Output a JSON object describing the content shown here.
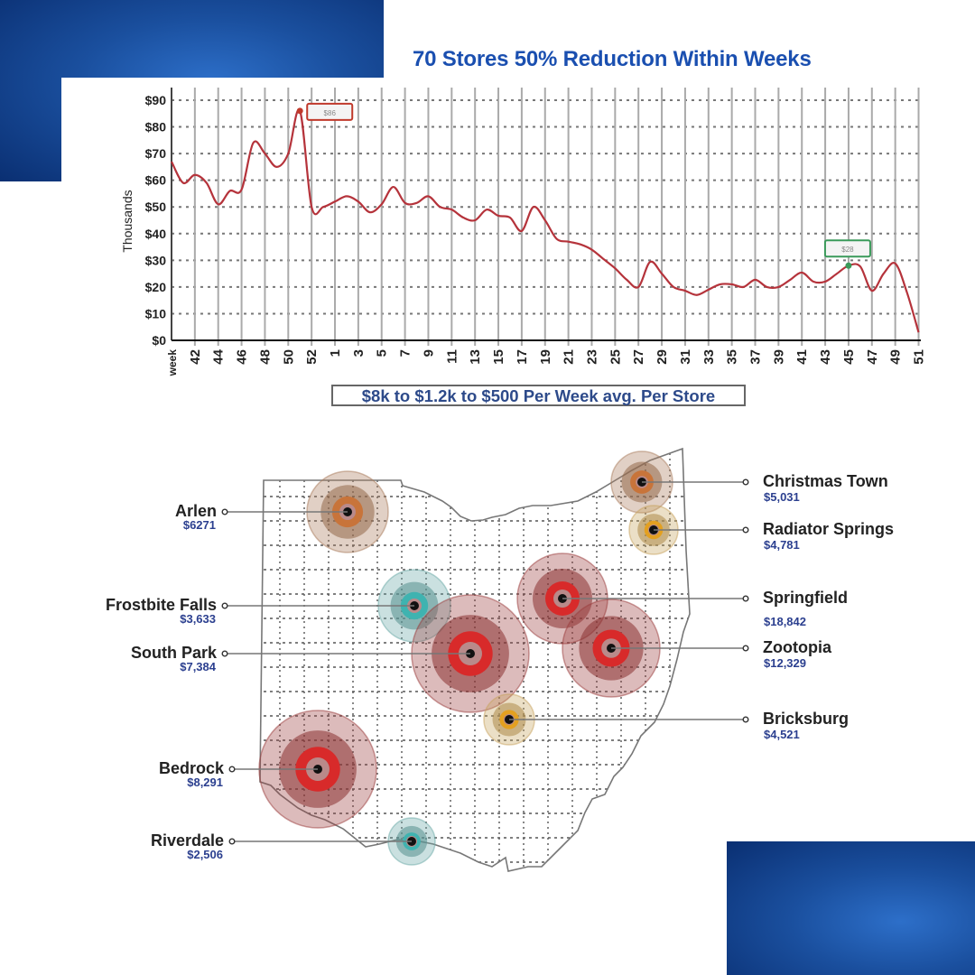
{
  "title": "70 Stores 50% Reduction Within Weeks",
  "subtitle": "$8k to $1.2k to $500 Per Week avg. Per Store",
  "colors": {
    "brand_blue": "#1a4fb0",
    "line": "#b5333b",
    "peak_callout": "#c0392b",
    "low_callout": "#3a9a5a"
  },
  "chart_data": {
    "type": "line",
    "title": "",
    "xlabel": "",
    "ylabel": "Thousands",
    "ylim": [
      0,
      90
    ],
    "y_ticks": [
      "$0",
      "$10",
      "$20",
      "$30",
      "$40",
      "$50",
      "$60",
      "$70",
      "$80",
      "$90"
    ],
    "y_tick_values": [
      0,
      10,
      20,
      30,
      40,
      50,
      60,
      70,
      80,
      90
    ],
    "grid": true,
    "x_tick_labels": [
      "week",
      "42",
      "44",
      "46",
      "48",
      "50",
      "52",
      "1",
      "3",
      "5",
      "7",
      "9",
      "11",
      "13",
      "15",
      "17",
      "19",
      "21",
      "23",
      "25",
      "27",
      "29",
      "31",
      "33",
      "35",
      "37",
      "39",
      "41",
      "43",
      "45",
      "47",
      "49",
      "51"
    ],
    "weeks": [
      40,
      41,
      42,
      43,
      44,
      45,
      46,
      47,
      48,
      49,
      50,
      51,
      52,
      1,
      2,
      3,
      4,
      5,
      6,
      7,
      8,
      9,
      10,
      11,
      12,
      13,
      14,
      15,
      16,
      17,
      18,
      19,
      20,
      21,
      22,
      23,
      24,
      25,
      26,
      27,
      28,
      29,
      30,
      31,
      32,
      33,
      34,
      35,
      36,
      37,
      38,
      39,
      40,
      41,
      42,
      43,
      44,
      45,
      46,
      47,
      48,
      49,
      50,
      51,
      52
    ],
    "values": [
      67,
      59,
      62,
      59,
      51,
      56,
      56.5,
      74,
      70,
      65,
      70,
      86,
      50,
      50,
      52,
      54,
      52,
      48,
      51,
      57.5,
      51.5,
      51.5,
      54,
      50,
      49,
      46,
      45,
      49,
      46.7,
      46,
      41,
      50,
      45,
      38,
      37,
      36,
      34,
      30.5,
      27,
      22.7,
      20,
      29.4,
      25,
      20,
      18.6,
      17,
      19,
      21,
      21,
      20,
      22.7,
      20,
      20,
      22.7,
      25.4,
      22,
      22,
      25,
      28,
      27.7,
      18.6,
      25,
      28.8,
      18,
      3
    ],
    "annotations": [
      {
        "week": 51,
        "value": 86,
        "label": "$86",
        "color": "#c0392b"
      },
      {
        "week": 46,
        "value": 28,
        "label": "$28",
        "color": "#3a9a5a"
      }
    ]
  },
  "map": {
    "locations": [
      {
        "name": "Arlen",
        "value": "$6271",
        "side": "left",
        "color": "#c8743a"
      },
      {
        "name": "Frostbite Falls",
        "value": "$3,633",
        "side": "left",
        "color": "#3fb3b0"
      },
      {
        "name": "South Park",
        "value": "$7,384",
        "side": "left",
        "color": "#d82a2a"
      },
      {
        "name": "Bedrock",
        "value": "$8,291",
        "side": "left",
        "color": "#d82a2a"
      },
      {
        "name": "Riverdale",
        "value": "$2,506",
        "side": "left",
        "color": "#3fb3b0"
      },
      {
        "name": "Christmas Town",
        "value": "$5,031",
        "side": "right",
        "color": "#c8743a"
      },
      {
        "name": "Radiator Springs",
        "value": "$4,781",
        "side": "right",
        "color": "#e3a020"
      },
      {
        "name": "Springfield",
        "value": "$18,842",
        "side": "right",
        "color": "#d82a2a"
      },
      {
        "name": "Zootopia",
        "value": "$12,329",
        "side": "right",
        "color": "#d82a2a"
      },
      {
        "name": "Bricksburg",
        "value": "$4,521",
        "side": "right",
        "color": "#e3a020"
      }
    ]
  }
}
